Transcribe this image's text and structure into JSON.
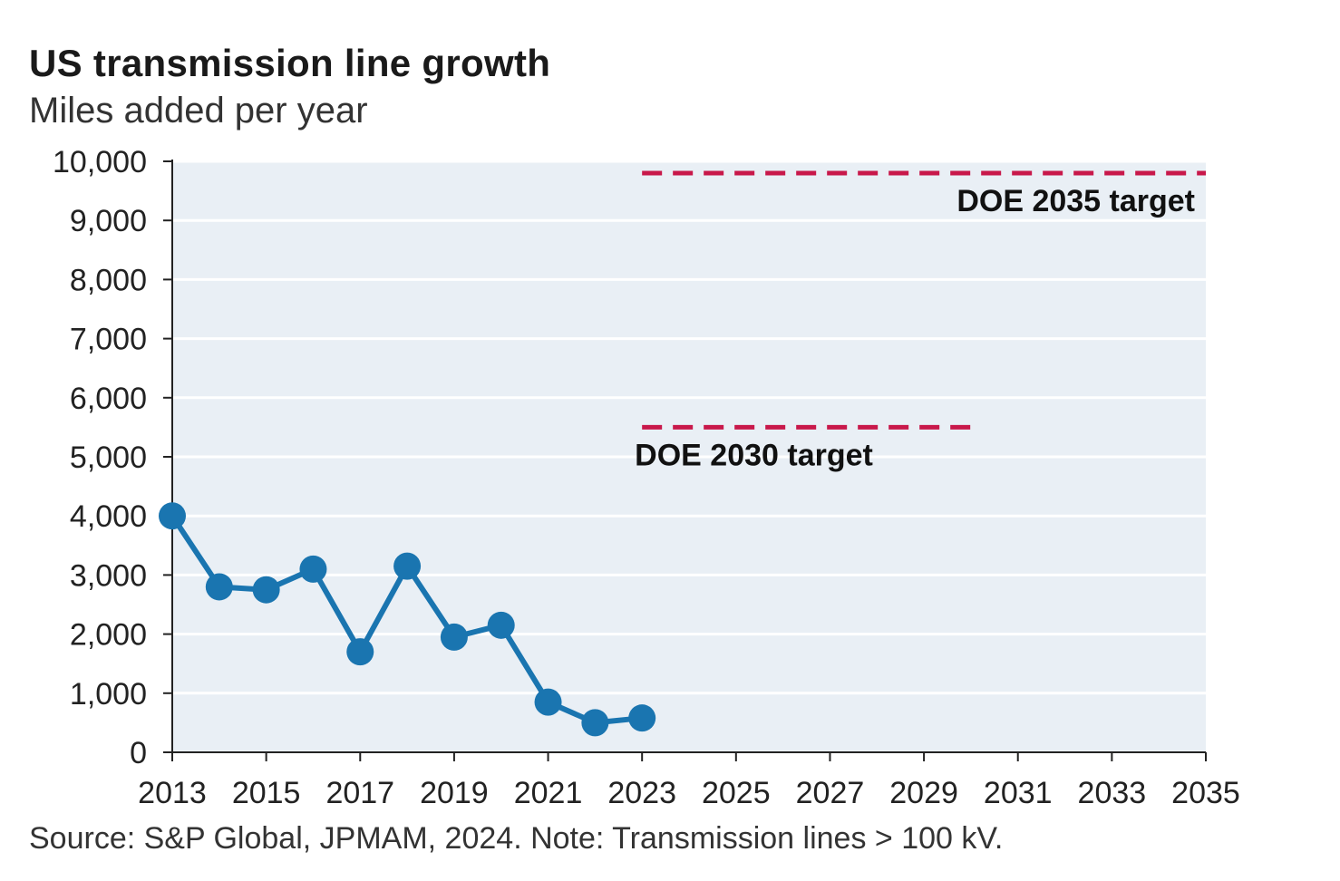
{
  "chart_data": {
    "type": "line",
    "title": "US transmission line growth",
    "subtitle": "Miles added per year",
    "source": "Source: S&P Global, JPMAM, 2024. Note: Transmission lines > 100 kV.",
    "xlim": [
      2013,
      2035
    ],
    "ylim": [
      0,
      10000
    ],
    "x_ticks": [
      2013,
      2015,
      2017,
      2019,
      2021,
      2023,
      2025,
      2027,
      2029,
      2031,
      2033,
      2035
    ],
    "x_tick_labels": [
      "2013",
      "2015",
      "2017",
      "2019",
      "2021",
      "2023",
      "2025",
      "2027",
      "2029",
      "2031",
      "2033",
      "2035"
    ],
    "y_ticks": [
      0,
      1000,
      2000,
      3000,
      4000,
      5000,
      6000,
      7000,
      8000,
      9000,
      10000
    ],
    "y_tick_labels": [
      "0",
      "1,000",
      "2,000",
      "3,000",
      "4,000",
      "5,000",
      "6,000",
      "7,000",
      "8,000",
      "9,000",
      "10,000"
    ],
    "grid": true,
    "series": [
      {
        "x": [
          2013,
          2014,
          2015,
          2016,
          2017,
          2018,
          2019,
          2020,
          2021,
          2022,
          2023
        ],
        "values": [
          4000,
          2800,
          2750,
          3100,
          1700,
          3150,
          1950,
          2150,
          850,
          500,
          580
        ],
        "color": "#1a75b0"
      }
    ],
    "targets": [
      {
        "label": "DOE 2035 target",
        "value": 9800,
        "x_start": 2023,
        "x_end": 2035,
        "color": "#c8184a"
      },
      {
        "label": "DOE 2030 target",
        "value": 5500,
        "x_start": 2023,
        "x_end": 2030,
        "color": "#c8184a"
      }
    ],
    "plot_background": "#e9eff5"
  }
}
